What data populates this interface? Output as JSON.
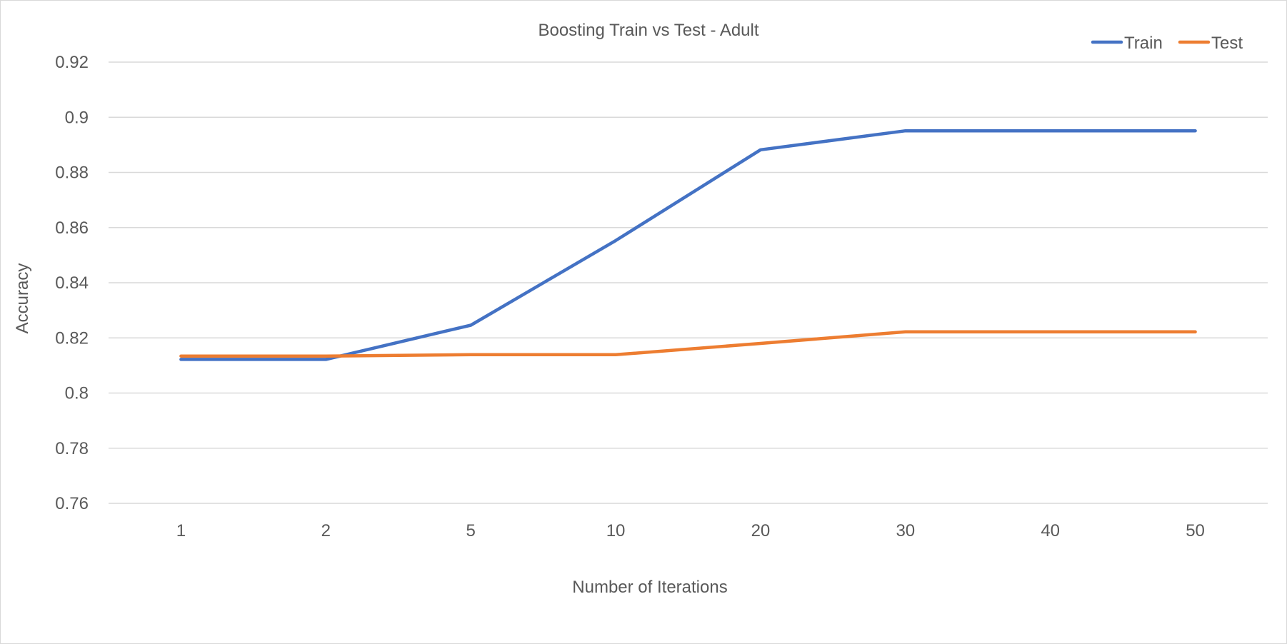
{
  "chart_data": {
    "type": "line",
    "title": "Boosting Train vs Test - Adult",
    "xlabel": "Number of Iterations",
    "ylabel": "Accuracy",
    "categories": [
      "1",
      "2",
      "5",
      "10",
      "20",
      "30",
      "40",
      "50"
    ],
    "ylim": [
      0.76,
      0.92
    ],
    "yticks": [
      0.76,
      0.78,
      0.8,
      0.82,
      0.84,
      0.86,
      0.88,
      0.9,
      0.92
    ],
    "ytick_labels": [
      "0.76",
      "0.78",
      "0.8",
      "0.82",
      "0.84",
      "0.86",
      "0.88",
      "0.9",
      "0.92"
    ],
    "grid": true,
    "legend_position": "top-right",
    "series": [
      {
        "name": "Train",
        "color": "#4472C4",
        "values": [
          0.8122,
          0.8122,
          0.8246,
          0.8553,
          0.8882,
          0.8951,
          0.8951,
          0.8951
        ]
      },
      {
        "name": "Test",
        "color": "#ED7D31",
        "values": [
          0.8134,
          0.8134,
          0.8139,
          0.8139,
          0.818,
          0.8222,
          0.8222,
          0.8222
        ]
      }
    ]
  }
}
